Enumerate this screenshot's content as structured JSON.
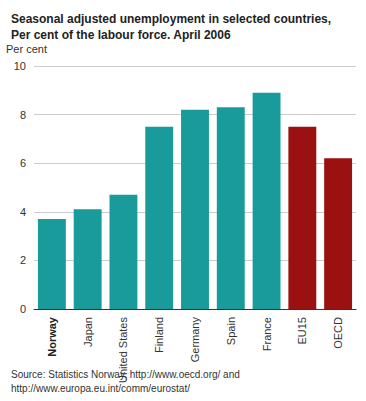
{
  "chart_data": {
    "type": "bar",
    "title": "Seasonal adjusted unemployment in selected countries,\nPer cent of the labour force. April 2006",
    "y_label": "Per cent",
    "source": "Source: Statistics Norway, http://www.oecd.org/ and\nhttp://www.europa.eu.int/comm/eurostat/",
    "categories": [
      "Norway",
      "Japan",
      "United States",
      "Finland",
      "Germany",
      "Spain",
      "France",
      "EU15",
      "OECD"
    ],
    "values": [
      3.7,
      4.1,
      4.7,
      7.5,
      8.2,
      8.3,
      8.9,
      7.5,
      6.2
    ],
    "colors": [
      "#1a9b9b",
      "#1a9b9b",
      "#1a9b9b",
      "#1a9b9b",
      "#1a9b9b",
      "#1a9b9b",
      "#1a9b9b",
      "#9b1010",
      "#9b1010"
    ],
    "ylim": [
      0,
      10
    ],
    "yticks": [
      0,
      2,
      4,
      6,
      8,
      10
    ],
    "grid": true
  }
}
